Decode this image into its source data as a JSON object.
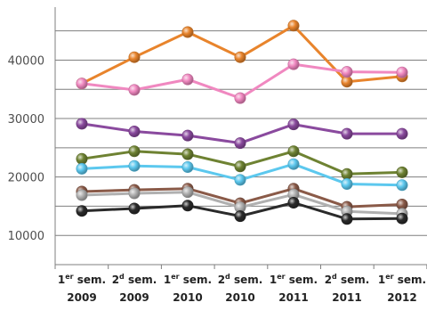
{
  "chart_data": {
    "type": "line",
    "title": "",
    "xlabel": "",
    "ylabel": "",
    "categories": [
      {
        "l1": "1",
        "sup": "er",
        "l1b": " sem.",
        "l2": "2009"
      },
      {
        "l1": "2",
        "sup": "d",
        "l1b": " sem.",
        "l2": "2009"
      },
      {
        "l1": "1",
        "sup": "er",
        "l1b": " sem.",
        "l2": "2010"
      },
      {
        "l1": "2",
        "sup": "d",
        "l1b": " sem.",
        "l2": "2010"
      },
      {
        "l1": "1",
        "sup": "er",
        "l1b": " sem.",
        "l2": "2011"
      },
      {
        "l1": "2",
        "sup": "d",
        "l1b": " sem.",
        "l2": "2011"
      },
      {
        "l1": "1",
        "sup": "er",
        "l1b": " sem.",
        "l2": "2012"
      }
    ],
    "ylim": [
      5000,
      48000
    ],
    "yticks": [
      10000,
      20000,
      30000,
      40000
    ],
    "ytick_labels": [
      "10000",
      "20000",
      "30000",
      "40000"
    ],
    "grid": true,
    "series": [
      {
        "color": "#e8842c",
        "values": [
          36000,
          40500,
          44800,
          40500,
          45900,
          36300,
          37200
        ]
      },
      {
        "color": "#f088c0",
        "values": [
          36000,
          34900,
          36700,
          33500,
          39300,
          38000,
          37900
        ]
      },
      {
        "color": "#8a4a9e",
        "values": [
          29100,
          27800,
          27100,
          25800,
          29000,
          27400,
          27400
        ]
      },
      {
        "color": "#6e8232",
        "values": [
          23100,
          24400,
          23900,
          21800,
          24400,
          20500,
          20800
        ]
      },
      {
        "color": "#5cc8ee",
        "values": [
          21400,
          21900,
          21700,
          19500,
          22200,
          18800,
          18600
        ]
      },
      {
        "color": "#8a5a48",
        "values": [
          17500,
          17800,
          18000,
          15500,
          18000,
          14900,
          15300
        ]
      },
      {
        "color": "#b0b0b0",
        "values": [
          16900,
          17200,
          17400,
          14800,
          17000,
          14100,
          13700
        ]
      },
      {
        "color": "#2a2a2a",
        "values": [
          14200,
          14600,
          15100,
          13300,
          15600,
          12800,
          12900
        ]
      }
    ]
  }
}
